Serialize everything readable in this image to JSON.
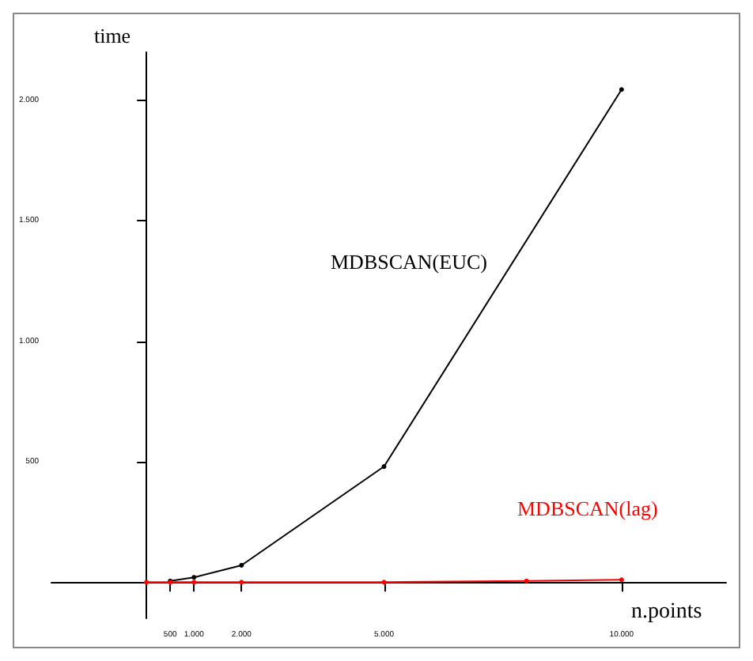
{
  "chart_data": {
    "type": "line",
    "xlabel": "n.points",
    "ylabel": "time",
    "xlim": [
      -2000,
      12200
    ],
    "ylim": [
      -150,
      2200
    ],
    "xticks": [
      {
        "value": 500,
        "label": "500"
      },
      {
        "value": 1000,
        "label": "1.000"
      },
      {
        "value": 2000,
        "label": "2.000"
      },
      {
        "value": 5000,
        "label": "5.000"
      },
      {
        "value": 10000,
        "label": "10.000"
      }
    ],
    "yticks": [
      500,
      {
        "value": 1000,
        "label": "1.000"
      },
      {
        "value": 1500,
        "label": "1.500"
      },
      {
        "value": 2000,
        "label": "2.000"
      }
    ],
    "series": [
      {
        "name": "MDBSCAN(EUC)",
        "color": "#000000",
        "x": [
          500,
          1000,
          2000,
          5000,
          10000
        ],
        "values": [
          5,
          20,
          70,
          480,
          2045
        ]
      },
      {
        "name": "MDBSCAN(lag)",
        "color": "#ff0000",
        "x": [
          0,
          500,
          1000,
          2000,
          5000,
          8000,
          10000
        ],
        "values": [
          0,
          0,
          0,
          0,
          0,
          5,
          10
        ]
      }
    ],
    "legend": false,
    "grid": false,
    "marker": "circle"
  }
}
